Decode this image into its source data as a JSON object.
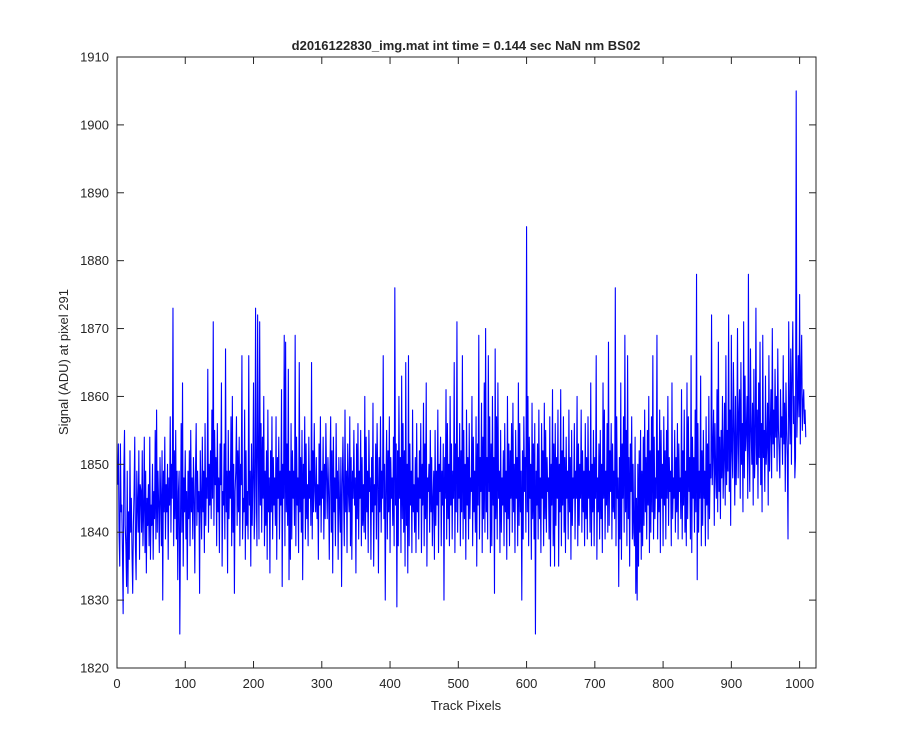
{
  "chart_data": {
    "type": "line",
    "title": "d2016122830_img.mat int time = 0.144 sec  NaN nm BS02",
    "xlabel": "Track Pixels",
    "ylabel": "Signal (ADU) at pixel 291",
    "xlim": [
      0,
      1024
    ],
    "ylim": [
      1820,
      1910
    ],
    "xticks": [
      0,
      100,
      200,
      300,
      400,
      500,
      600,
      700,
      800,
      900,
      1000
    ],
    "yticks": [
      1820,
      1830,
      1840,
      1850,
      1860,
      1870,
      1880,
      1890,
      1900,
      1910
    ],
    "grid": false,
    "legend": "none",
    "series": [
      {
        "color": "#0000ff",
        "x_start": 1,
        "x_step": 1,
        "values": [
          1847,
          1853,
          1840,
          1835,
          1853,
          1843,
          1844,
          1837,
          1828,
          1849,
          1855,
          1841,
          1838,
          1832,
          1849,
          1831,
          1843,
          1836,
          1852,
          1840,
          1845,
          1837,
          1831,
          1841,
          1846,
          1854,
          1838,
          1833,
          1849,
          1844,
          1840,
          1852,
          1836,
          1847,
          1846,
          1840,
          1852,
          1838,
          1843,
          1854,
          1837,
          1849,
          1834,
          1845,
          1841,
          1847,
          1838,
          1854,
          1836,
          1844,
          1841,
          1850,
          1836,
          1846,
          1842,
          1855,
          1839,
          1858,
          1840,
          1849,
          1844,
          1837,
          1851,
          1845,
          1838,
          1852,
          1830,
          1849,
          1843,
          1854,
          1839,
          1847,
          1843,
          1850,
          1836,
          1848,
          1844,
          1857,
          1840,
          1850,
          1845,
          1873,
          1838,
          1852,
          1842,
          1855,
          1839,
          1849,
          1833,
          1846,
          1849,
          1825,
          1841,
          1856,
          1840,
          1862,
          1835,
          1848,
          1843,
          1852,
          1839,
          1846,
          1833,
          1849,
          1842,
          1852,
          1838,
          1855,
          1843,
          1848,
          1839,
          1851,
          1845,
          1834,
          1849,
          1856,
          1841,
          1849,
          1843,
          1846,
          1831,
          1852,
          1845,
          1839,
          1854,
          1843,
          1849,
          1837,
          1856,
          1841,
          1848,
          1845,
          1864,
          1840,
          1850,
          1844,
          1852,
          1842,
          1858,
          1845,
          1871,
          1841,
          1855,
          1847,
          1851,
          1838,
          1856,
          1843,
          1848,
          1837,
          1853,
          1847,
          1862,
          1835,
          1846,
          1844,
          1853,
          1839,
          1867,
          1843,
          1849,
          1834,
          1855,
          1842,
          1849,
          1845,
          1857,
          1838,
          1860,
          1840,
          1850,
          1831,
          1846,
          1849,
          1857,
          1841,
          1852,
          1843,
          1854,
          1838,
          1850,
          1847,
          1866,
          1839,
          1845,
          1843,
          1858,
          1836,
          1852,
          1841,
          1846,
          1839,
          1866,
          1844,
          1849,
          1835,
          1853,
          1841,
          1848,
          1862,
          1839,
          1843,
          1873,
          1847,
          1838,
          1872,
          1851,
          1839,
          1871,
          1844,
          1856,
          1840,
          1854,
          1845,
          1860,
          1838,
          1849,
          1841,
          1852,
          1836,
          1858,
          1843,
          1848,
          1834,
          1852,
          1843,
          1857,
          1839,
          1851,
          1844,
          1848,
          1841,
          1857,
          1836,
          1851,
          1845,
          1854,
          1839,
          1849,
          1844,
          1861,
          1832,
          1850,
          1845,
          1869,
          1838,
          1868,
          1843,
          1853,
          1841,
          1864,
          1833,
          1849,
          1836,
          1856,
          1839,
          1852,
          1845,
          1849,
          1841,
          1869,
          1838,
          1854,
          1844,
          1848,
          1837,
          1865,
          1843,
          1851,
          1840,
          1855,
          1833,
          1850,
          1845,
          1857,
          1839,
          1853,
          1842,
          1847,
          1838,
          1854,
          1845,
          1849,
          1841,
          1865,
          1839,
          1852,
          1843,
          1856,
          1846,
          1843,
          1851,
          1842,
          1847,
          1836,
          1853,
          1844,
          1857,
          1840,
          1849,
          1845,
          1854,
          1839,
          1850,
          1842,
          1856,
          1848,
          1842,
          1851,
          1846,
          1836,
          1849,
          1857,
          1840,
          1852,
          1834,
          1854,
          1843,
          1848,
          1838,
          1856,
          1845,
          1849,
          1836,
          1851,
          1844,
          1840,
          1851,
          1832,
          1847,
          1854,
          1845,
          1838,
          1858,
          1843,
          1849,
          1837,
          1853,
          1846,
          1843,
          1857,
          1838,
          1851,
          1836,
          1849,
          1845,
          1855,
          1844,
          1848,
          1834,
          1853,
          1842,
          1856,
          1839,
          1849,
          1845,
          1855,
          1838,
          1851,
          1841,
          1847,
          1840,
          1860,
          1839,
          1854,
          1843,
          1849,
          1837,
          1855,
          1846,
          1848,
          1836,
          1851,
          1843,
          1859,
          1835,
          1847,
          1844,
          1853,
          1839,
          1856,
          1848,
          1834,
          1851,
          1843,
          1857,
          1840,
          1849,
          1845,
          1866,
          1842,
          1850,
          1830,
          1847,
          1855,
          1839,
          1852,
          1843,
          1857,
          1837,
          1851,
          1845,
          1848,
          1841,
          1854,
          1838,
          1876,
          1844,
          1853,
          1829,
          1852,
          1838,
          1860,
          1845,
          1851,
          1837,
          1863,
          1842,
          1856,
          1840,
          1852,
          1835,
          1865,
          1841,
          1850,
          1834,
          1866,
          1838,
          1853,
          1844,
          1849,
          1837,
          1858,
          1843,
          1847,
          1840,
          1851,
          1837,
          1856,
          1843,
          1848,
          1839,
          1852,
          1845,
          1856,
          1837,
          1850,
          1844,
          1859,
          1838,
          1853,
          1842,
          1862,
          1835,
          1848,
          1846,
          1850,
          1840,
          1855,
          1843,
          1851,
          1838,
          1845,
          1849,
          1836,
          1855,
          1841,
          1849,
          1844,
          1858,
          1837,
          1850,
          1846,
          1854,
          1838,
          1849,
          1844,
          1853,
          1830,
          1851,
          1845,
          1861,
          1839,
          1856,
          1842,
          1850,
          1838,
          1860,
          1844,
          1853,
          1839,
          1849,
          1845,
          1865,
          1837,
          1853,
          1843,
          1871,
          1840,
          1851,
          1845,
          1856,
          1838,
          1852,
          1843,
          1866,
          1839,
          1855,
          1842,
          1850,
          1836,
          1858,
          1844,
          1851,
          1839,
          1856,
          1842,
          1848,
          1846,
          1860,
          1838,
          1854,
          1843,
          1849,
          1840,
          1857,
          1835,
          1853,
          1844,
          1869,
          1839,
          1851,
          1846,
          1859,
          1837,
          1854,
          1842,
          1862,
          1840,
          1870,
          1843,
          1851,
          1839,
          1866,
          1846,
          1857,
          1837,
          1853,
          1838,
          1860,
          1844,
          1851,
          1831,
          1867,
          1842,
          1857,
          1839,
          1862,
          1845,
          1849,
          1837,
          1855,
          1840,
          1848,
          1844,
          1852,
          1838,
          1856,
          1843,
          1849,
          1836,
          1860,
          1842,
          1853,
          1838,
          1852,
          1845,
          1856,
          1840,
          1859,
          1843,
          1850,
          1837,
          1855,
          1845,
          1851,
          1838,
          1862,
          1841,
          1856,
          1843,
          1849,
          1830,
          1852,
          1839,
          1857,
          1846,
          1851,
          1840,
          1885,
          1843,
          1860,
          1838,
          1854,
          1845,
          1850,
          1836,
          1859,
          1842,
          1853,
          1839,
          1856,
          1825,
          1849,
          1844,
          1853,
          1839,
          1858,
          1842,
          1848,
          1837,
          1856,
          1845,
          1852,
          1838,
          1859,
          1842,
          1855,
          1840,
          1851,
          1846,
          1848,
          1839,
          1857,
          1835,
          1850,
          1844,
          1861,
          1838,
          1853,
          1835,
          1856,
          1841,
          1851,
          1845,
          1858,
          1835,
          1850,
          1843,
          1861,
          1838,
          1852,
          1844,
          1857,
          1840,
          1851,
          1837,
          1854,
          1845,
          1849,
          1839,
          1858,
          1843,
          1851,
          1836,
          1855,
          1841,
          1848,
          1845,
          1856,
          1839,
          1849,
          1845,
          1860,
          1838,
          1853,
          1841,
          1850,
          1845,
          1858,
          1840,
          1852,
          1843,
          1849,
          1838,
          1856,
          1842,
          1851,
          1839,
          1857,
          1845,
          1849,
          1840,
          1862,
          1838,
          1850,
          1843,
          1855,
          1838,
          1851,
          1845,
          1866,
          1836,
          1848,
          1843,
          1853,
          1839,
          1855,
          1842,
          1850,
          1837,
          1862,
          1845,
          1858,
          1839,
          1849,
          1844,
          1856,
          1840,
          1868,
          1841,
          1852,
          1846,
          1856,
          1839,
          1853,
          1843,
          1849,
          1842,
          1876,
          1838,
          1857,
          1845,
          1848,
          1832,
          1851,
          1839,
          1862,
          1836,
          1853,
          1845,
          1857,
          1840,
          1869,
          1843,
          1855,
          1838,
          1866,
          1842,
          1851,
          1835,
          1853,
          1846,
          1857,
          1839,
          1850,
          1840,
          1838,
          1854,
          1831,
          1845,
          1830,
          1850,
          1835,
          1852,
          1840,
          1855,
          1836,
          1849,
          1838,
          1854,
          1841,
          1858,
          1843,
          1851,
          1839,
          1855,
          1844,
          1860,
          1837,
          1852,
          1840,
          1857,
          1843,
          1866,
          1839,
          1854,
          1842,
          1848,
          1845,
          1869,
          1839,
          1852,
          1843,
          1858,
          1837,
          1855,
          1845,
          1850,
          1838,
          1857,
          1844,
          1852,
          1839,
          1855,
          1845,
          1860,
          1841,
          1851,
          1846,
          1849,
          1838,
          1862,
          1842,
          1848,
          1845,
          1855,
          1840,
          1851,
          1843,
          1856,
          1839,
          1853,
          1846,
          1848,
          1842,
          1861,
          1839,
          1852,
          1844,
          1858,
          1840,
          1849,
          1838,
          1862,
          1842,
          1857,
          1846,
          1851,
          1839,
          1866,
          1837,
          1854,
          1845,
          1851,
          1840,
          1858,
          1843,
          1878,
          1833,
          1856,
          1840,
          1849,
          1845,
          1863,
          1838,
          1852,
          1841,
          1855,
          1845,
          1849,
          1838,
          1857,
          1844,
          1853,
          1839,
          1860,
          1842,
          1850,
          1848,
          1872,
          1847,
          1852,
          1858,
          1841,
          1856,
          1849,
          1845,
          1861,
          1843,
          1868,
          1846,
          1854,
          1842,
          1855,
          1848,
          1860,
          1845,
          1851,
          1859,
          1844,
          1866,
          1847,
          1855,
          1849,
          1872,
          1846,
          1858,
          1841,
          1869,
          1852,
          1848,
          1865,
          1855,
          1844,
          1860,
          1847,
          1853,
          1870,
          1848,
          1857,
          1861,
          1845,
          1865,
          1850,
          1856,
          1843,
          1871,
          1848,
          1863,
          1852,
          1855,
          1860,
          1845,
          1878,
          1852,
          1846,
          1867,
          1855,
          1850,
          1859,
          1844,
          1864,
          1848,
          1853,
          1873,
          1850,
          1858,
          1845,
          1862,
          1851,
          1868,
          1847,
          1856,
          1843,
          1869,
          1851,
          1855,
          1846,
          1863,
          1850,
          1853,
          1859,
          1844,
          1866,
          1849,
          1855,
          1861,
          1848,
          1870,
          1853,
          1858,
          1851,
          1864,
          1854,
          1860,
          1849,
          1867,
          1855,
          1852,
          1848,
          1861,
          1854,
          1857,
          1850,
          1866,
          1853,
          1859,
          1846,
          1862,
          1855,
          1851,
          1839,
          1871,
          1858,
          1853,
          1867,
          1850,
          1863,
          1871,
          1856,
          1860,
          1848,
          1851,
          1905,
          1854,
          1859,
          1866,
          1857,
          1875,
          1853,
          1863,
          1869,
          1855,
          1859,
          1861,
          1856,
          1858,
          1854
        ]
      }
    ]
  }
}
